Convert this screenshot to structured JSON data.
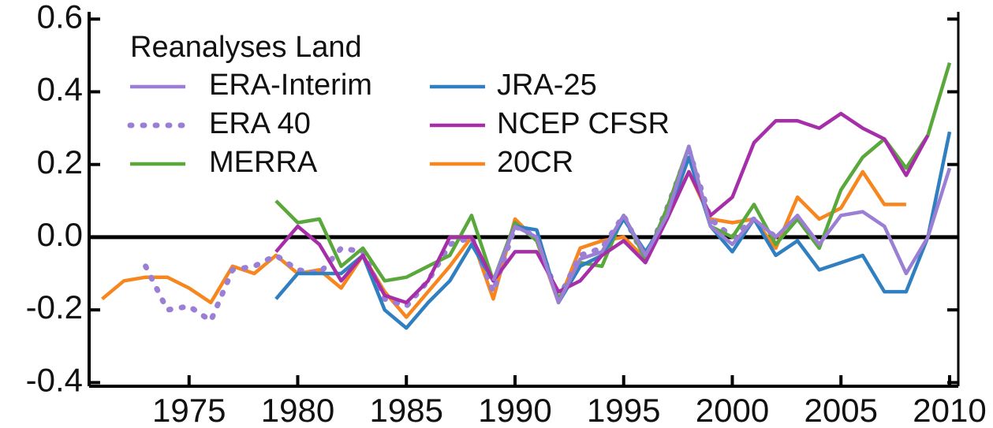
{
  "chart_data": {
    "type": "line",
    "legend_title": "Reanalyses Land",
    "xlim": [
      1970.4,
      2010.4
    ],
    "ylim": [
      -0.41,
      0.62
    ],
    "xticks": [
      1975,
      1980,
      1985,
      1990,
      1995,
      2000,
      2005,
      2010
    ],
    "yticks": [
      0.6,
      0.4,
      0.2,
      {
        "value": 0,
        "label": "0.0"
      },
      -0.2,
      -0.4
    ],
    "zero_line": true,
    "series": [
      {
        "name": "20CR",
        "color": "#f7861f",
        "dash": "solid",
        "x": [
          1971,
          1972,
          1973,
          1974,
          1975,
          1976,
          1977,
          1978,
          1979,
          1980,
          1981,
          1982,
          1983,
          1984,
          1985,
          1986,
          1987,
          1988,
          1989,
          1990,
          1991,
          1992,
          1993,
          1994,
          1995,
          1996,
          1997,
          1998,
          1999,
          2000,
          2001,
          2002,
          2003,
          2004,
          2005,
          2006,
          2007,
          2008
        ],
        "values": [
          -0.17,
          -0.12,
          -0.11,
          -0.11,
          -0.14,
          -0.18,
          -0.08,
          -0.1,
          -0.05,
          -0.1,
          -0.09,
          -0.14,
          -0.05,
          -0.15,
          -0.22,
          -0.15,
          -0.08,
          0.0,
          -0.17,
          0.05,
          -0.01,
          -0.18,
          -0.03,
          -0.01,
          0.0,
          -0.06,
          0.06,
          0.18,
          0.05,
          0.04,
          0.05,
          -0.03,
          0.11,
          0.05,
          0.08,
          0.18,
          0.09,
          0.09
        ]
      },
      {
        "name": "ERA 40",
        "color": "#9b7fd4",
        "dash": "dotted",
        "x": [
          1973,
          1974,
          1975,
          1976,
          1977,
          1978,
          1979,
          1980,
          1981,
          1982,
          1983,
          1984,
          1985,
          1986,
          1987,
          1988,
          1989,
          1990,
          1991,
          1992,
          1993,
          1994,
          1995,
          1996,
          1997,
          1998,
          1999,
          2000,
          2001,
          2002
        ],
        "values": [
          -0.08,
          -0.2,
          -0.19,
          -0.23,
          -0.09,
          -0.08,
          -0.05,
          -0.09,
          -0.1,
          -0.03,
          -0.04,
          -0.17,
          -0.19,
          -0.12,
          -0.02,
          0.0,
          -0.15,
          0.03,
          0.0,
          -0.17,
          -0.05,
          -0.03,
          0.06,
          -0.06,
          0.08,
          0.24,
          0.05,
          0.0,
          0.05,
          0.0
        ]
      },
      {
        "name": "MERRA",
        "color": "#5aa83c",
        "dash": "solid",
        "x": [
          1979,
          1980,
          1981,
          1982,
          1983,
          1984,
          1985,
          1986,
          1987,
          1988,
          1989,
          1990,
          1991,
          1992,
          1993,
          1994,
          1995,
          1996,
          1997,
          1998,
          1999,
          2000,
          2001,
          2002,
          2003,
          2004,
          2005,
          2006,
          2007,
          2008,
          2009,
          2010
        ],
        "values": [
          0.1,
          0.04,
          0.05,
          -0.08,
          -0.03,
          -0.12,
          -0.11,
          -0.08,
          -0.05,
          0.06,
          -0.12,
          0.04,
          -0.01,
          -0.17,
          -0.07,
          -0.08,
          0.06,
          -0.06,
          0.08,
          0.25,
          0.03,
          0.0,
          0.09,
          -0.02,
          0.05,
          -0.03,
          0.13,
          0.22,
          0.27,
          0.19,
          0.28,
          0.48
        ]
      },
      {
        "name": "JRA-25",
        "color": "#2f7fc1",
        "dash": "solid",
        "x": [
          1979,
          1980,
          1981,
          1982,
          1983,
          1984,
          1985,
          1986,
          1987,
          1988,
          1989,
          1990,
          1991,
          1992,
          1993,
          1994,
          1995,
          1996,
          1997,
          1998,
          1999,
          2000,
          2001,
          2002,
          2003,
          2004,
          2005,
          2006,
          2007,
          2008,
          2009,
          2010
        ],
        "values": [
          -0.17,
          -0.1,
          -0.1,
          -0.1,
          -0.05,
          -0.2,
          -0.25,
          -0.18,
          -0.12,
          -0.02,
          -0.12,
          0.03,
          0.02,
          -0.18,
          -0.08,
          -0.05,
          0.05,
          -0.04,
          0.05,
          0.22,
          0.03,
          -0.04,
          0.05,
          -0.05,
          -0.01,
          -0.09,
          -0.07,
          -0.05,
          -0.15,
          -0.15,
          0.0,
          0.29
        ]
      },
      {
        "name": "NCEP CFSR",
        "color": "#a62ea8",
        "dash": "solid",
        "x": [
          1979,
          1980,
          1981,
          1982,
          1983,
          1984,
          1985,
          1986,
          1987,
          1988,
          1989,
          1990,
          1991,
          1992,
          1993,
          1994,
          1995,
          1996,
          1997,
          1998,
          1999,
          2000,
          2001,
          2002,
          2003,
          2004,
          2005,
          2006,
          2007,
          2008,
          2009
        ],
        "values": [
          -0.04,
          0.03,
          -0.02,
          -0.12,
          -0.05,
          -0.16,
          -0.18,
          -0.12,
          0.0,
          0.0,
          -0.12,
          -0.04,
          -0.04,
          -0.15,
          -0.12,
          -0.05,
          -0.01,
          -0.07,
          0.05,
          0.18,
          0.06,
          0.11,
          0.26,
          0.32,
          0.32,
          0.3,
          0.34,
          0.3,
          0.27,
          0.17,
          0.28
        ]
      },
      {
        "name": "ERA-Interim",
        "color": "#9b7fd4",
        "dash": "solid",
        "x": [
          1989,
          1990,
          1991,
          1992,
          1993,
          1994,
          1995,
          1996,
          1997,
          1998,
          1999,
          2000,
          2001,
          2002,
          2003,
          2004,
          2005,
          2006,
          2007,
          2008,
          2009,
          2010
        ],
        "values": [
          -0.12,
          0.03,
          0.0,
          -0.18,
          -0.06,
          -0.04,
          0.06,
          -0.05,
          0.06,
          0.25,
          0.03,
          -0.02,
          0.05,
          0.0,
          0.06,
          -0.02,
          0.06,
          0.07,
          0.03,
          -0.1,
          0.0,
          0.19
        ]
      }
    ],
    "legend_order": [
      5,
      1,
      2,
      3,
      4,
      0
    ]
  }
}
